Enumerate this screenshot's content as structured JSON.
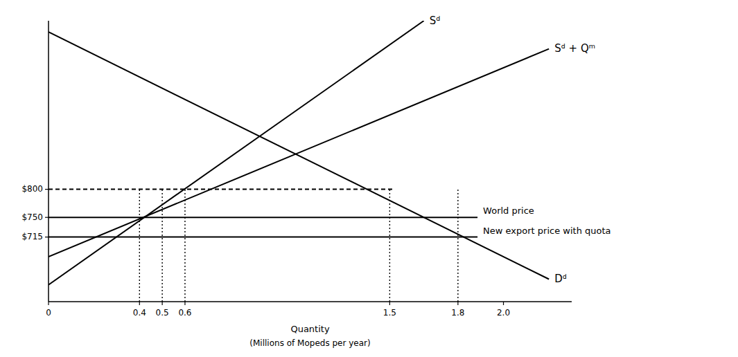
{
  "chart_data": {
    "type": "line",
    "color": "#000000",
    "xlabel": "Quantity",
    "annotations": [
      {
        "text": "(Millions of Mopeds per year)"
      }
    ],
    "xlim": [
      0,
      2.3
    ],
    "ylim": [
      600,
      1100
    ],
    "xticks": [
      0,
      0.4,
      0.5,
      0.6,
      1.5,
      1.8,
      {
        "value": 2.0,
        "label": "2.0"
      }
    ],
    "yticks": [
      {
        "value": 800,
        "label": "$800"
      },
      {
        "value": 750,
        "label": "$750"
      },
      {
        "value": 715,
        "label": "$715"
      }
    ],
    "grid": false,
    "series": [
      {
        "name": "Dᵈ",
        "x": [
          0.0,
          2.2
        ],
        "values": [
          1080,
          640
        ],
        "line_style": "solid"
      },
      {
        "name": "Sᵈ",
        "x": [
          0.0,
          1.65
        ],
        "values": [
          630,
          1100
        ],
        "line_style": "solid"
      },
      {
        "name": "Sᵈ + Qᵐ",
        "x": [
          0.0,
          2.2
        ],
        "values": [
          680,
          1050
        ],
        "line_style": "solid"
      },
      {
        "x": [
          0.0,
          1.52
        ],
        "values": [
          800,
          800
        ],
        "line_style": "dashed"
      },
      {
        "x": [
          0.4,
          0.4
        ],
        "values": [
          600,
          800
        ],
        "line_style": "dotted"
      },
      {
        "x": [
          0.5,
          0.5
        ],
        "values": [
          600,
          800
        ],
        "line_style": "dotted"
      },
      {
        "x": [
          0.6,
          0.6
        ],
        "values": [
          600,
          800
        ],
        "line_style": "dotted"
      },
      {
        "x": [
          1.5,
          1.5
        ],
        "values": [
          600,
          800
        ],
        "line_style": "dotted"
      },
      {
        "x": [
          1.8,
          1.8
        ],
        "values": [
          600,
          800
        ],
        "line_style": "dotted"
      }
    ],
    "hlines": [
      {
        "value": 750,
        "label": "World price"
      },
      {
        "value": 715,
        "label": "New export price with quota"
      }
    ]
  }
}
